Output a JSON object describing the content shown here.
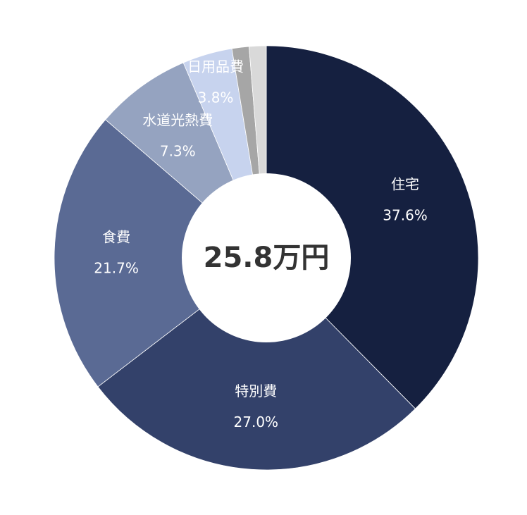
{
  "chart_data": {
    "type": "donut",
    "center_label": "25.8万円",
    "categories": [
      "住宅",
      "特別費",
      "食費",
      "水道光熱費",
      "日用品費",
      null,
      null
    ],
    "values": [
      37.6,
      27.0,
      21.7,
      7.3,
      3.8,
      1.3,
      1.3
    ],
    "value_labels": [
      "37.6%",
      "27.0%",
      "21.7%",
      "7.3%",
      "3.8%",
      null,
      null
    ],
    "colors": [
      "#152040",
      "#33416a",
      "#5a6a94",
      "#95a3c0",
      "#c7d3ee",
      "#a6a6a6",
      "#d9d9d9"
    ]
  }
}
